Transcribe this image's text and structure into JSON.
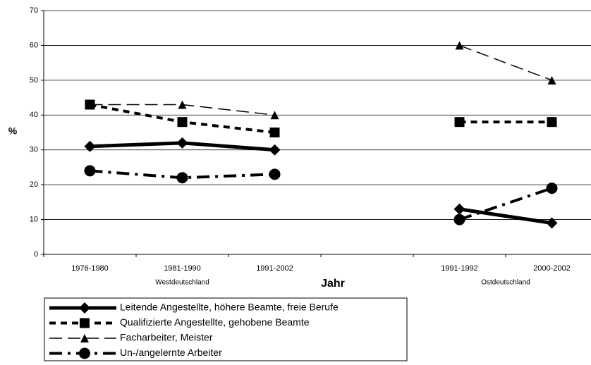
{
  "chart_data": {
    "type": "line",
    "y_label": "%",
    "x_label": "Jahr",
    "categories": [
      "1976-1980",
      "1981-1990",
      "1991-2002",
      null,
      "1991-1992",
      "2000-2002"
    ],
    "group_labels": [
      "Westdeutschland",
      "Ostdeutschland"
    ],
    "ylim": [
      0,
      70
    ],
    "yticks": [
      0,
      10,
      20,
      30,
      40,
      50,
      60,
      70
    ],
    "grid": true,
    "series": [
      {
        "name": "Leitende Angestellte, höhere Beamte, freie Berufe",
        "color": "#000000",
        "dash": "solid",
        "marker": "diamond",
        "values": [
          31,
          32,
          30,
          null,
          13,
          9
        ]
      },
      {
        "name": "Qualifizierte Angestellte, gehobene Beamte",
        "color": "#000000",
        "dash": "dashed",
        "marker": "square",
        "values": [
          43,
          38,
          35,
          null,
          38,
          38
        ]
      },
      {
        "name": "Facharbeiter, Meister",
        "color": "#000000",
        "dash": "longdash",
        "marker": "triangle",
        "values": [
          43,
          43,
          40,
          null,
          60,
          50
        ]
      },
      {
        "name": "Un-/angelernte Arbeiter",
        "color": "#000000",
        "dash": "dashdot",
        "marker": "circle",
        "values": [
          24,
          22,
          23,
          null,
          10,
          19
        ]
      }
    ]
  }
}
